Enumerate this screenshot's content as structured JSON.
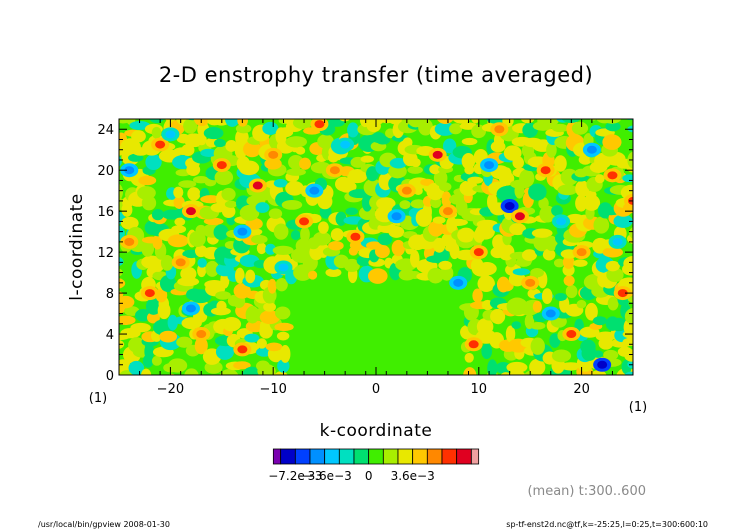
{
  "chart_data": {
    "type": "heatmap",
    "title": "2-D enstrophy transfer (time averaged)",
    "xlabel": "k-coordinate",
    "ylabel": "l-coordinate",
    "xlim": [
      -25,
      25
    ],
    "ylim": [
      0,
      25
    ],
    "xticks": [
      {
        "value": -20,
        "label": "−20"
      },
      {
        "value": -10,
        "label": "−10"
      },
      {
        "value": 0,
        "label": "0"
      },
      {
        "value": 10,
        "label": "10"
      },
      {
        "value": 20,
        "label": "20"
      }
    ],
    "yticks": [
      {
        "value": 0,
        "label": "0"
      },
      {
        "value": 4,
        "label": "4"
      },
      {
        "value": 8,
        "label": "8"
      },
      {
        "value": 12,
        "label": "12"
      },
      {
        "value": 16,
        "label": "16"
      },
      {
        "value": 20,
        "label": "20"
      },
      {
        "value": 24,
        "label": "24"
      }
    ],
    "x_unit_label": "(1)",
    "y_unit_label": "(1)",
    "colorbar": {
      "colors": [
        "#7a00b0",
        "#0000c8",
        "#0040ff",
        "#0090ff",
        "#00c8ff",
        "#00e0c0",
        "#00e070",
        "#40ee00",
        "#a8ee00",
        "#e8e800",
        "#ffc800",
        "#ff8800",
        "#ff3000",
        "#e00020",
        "#f0a0a0"
      ],
      "tick_labels": [
        {
          "boundary": 2,
          "label": "−7.2e−3"
        },
        {
          "boundary": 4,
          "label": "−3.6e−3"
        },
        {
          "boundary": 7,
          "label": "0"
        },
        {
          "boundary": 10,
          "label": "3.6e−3"
        }
      ]
    },
    "central_region": {
      "k_range": [
        -7,
        7
      ],
      "l_range": [
        0,
        8
      ],
      "level_index": 7
    },
    "extrema": [
      {
        "k": 13,
        "l": 16.5,
        "level_index": 1
      },
      {
        "k": 22,
        "l": 1,
        "level_index": 1
      },
      {
        "k": -18,
        "l": 16,
        "level_index": 13
      },
      {
        "k": -11.5,
        "l": 18.5,
        "level_index": 13
      },
      {
        "k": 6,
        "l": 21.5,
        "level_index": 13
      },
      {
        "k": 14,
        "l": 15.5,
        "level_index": 13
      },
      {
        "k": 25,
        "l": 17,
        "level_index": 12
      },
      {
        "k": -21,
        "l": 22.5,
        "level_index": 12
      },
      {
        "k": 19,
        "l": 4,
        "level_index": 12
      },
      {
        "k": -7,
        "l": 15,
        "level_index": 12
      },
      {
        "k": 10,
        "l": 12,
        "level_index": 12
      },
      {
        "k": 23,
        "l": 19.5,
        "level_index": 12
      },
      {
        "k": -5.5,
        "l": 24.5,
        "level_index": 12
      },
      {
        "k": 9.5,
        "l": 3,
        "level_index": 12
      },
      {
        "k": -13,
        "l": 2.5,
        "level_index": 12
      },
      {
        "k": 16.5,
        "l": 20,
        "level_index": 12
      },
      {
        "k": -15,
        "l": 20.5,
        "level_index": 12
      },
      {
        "k": -2,
        "l": 13.5,
        "level_index": 12
      },
      {
        "k": -22,
        "l": 8,
        "level_index": 12
      },
      {
        "k": 24,
        "l": 8,
        "level_index": 12
      },
      {
        "k": -10,
        "l": 21.5,
        "level_index": 11
      },
      {
        "k": 3,
        "l": 18,
        "level_index": 11
      },
      {
        "k": 7,
        "l": 16,
        "level_index": 11
      },
      {
        "k": -4,
        "l": 20,
        "level_index": 11
      },
      {
        "k": 20,
        "l": 12,
        "level_index": 11
      },
      {
        "k": -19,
        "l": 11,
        "level_index": 11
      },
      {
        "k": 15,
        "l": 9,
        "level_index": 11
      },
      {
        "k": -17,
        "l": 4,
        "level_index": 11
      },
      {
        "k": -24,
        "l": 13,
        "level_index": 11
      },
      {
        "k": 12,
        "l": 24,
        "level_index": 11
      },
      {
        "k": -18,
        "l": 6.5,
        "level_index": 3
      },
      {
        "k": -6,
        "l": 18,
        "level_index": 3
      },
      {
        "k": 21,
        "l": 22,
        "level_index": 3
      },
      {
        "k": 17,
        "l": 6,
        "level_index": 3
      },
      {
        "k": -24,
        "l": 20,
        "level_index": 3
      },
      {
        "k": 2,
        "l": 15.5,
        "level_index": 3
      },
      {
        "k": 8,
        "l": 9,
        "level_index": 3
      },
      {
        "k": -13,
        "l": 14,
        "level_index": 3
      },
      {
        "k": 11,
        "l": 20.5,
        "level_index": 3
      },
      {
        "k": -20,
        "l": 23.5,
        "level_index": 4
      },
      {
        "k": 18,
        "l": 15,
        "level_index": 4
      },
      {
        "k": -9,
        "l": 10.5,
        "level_index": 4
      },
      {
        "k": 23.5,
        "l": 13,
        "level_index": 4
      },
      {
        "k": -3,
        "l": 22.5,
        "level_index": 4
      }
    ]
  },
  "footer": {
    "mean_label": "(mean) t:300..600",
    "left_text": "/usr/local/bin/gpview   2008-01-30",
    "right_text": "sp-tf-enst2d.nc@tf,k=-25:25,l=0:25,t=300:600:10"
  }
}
